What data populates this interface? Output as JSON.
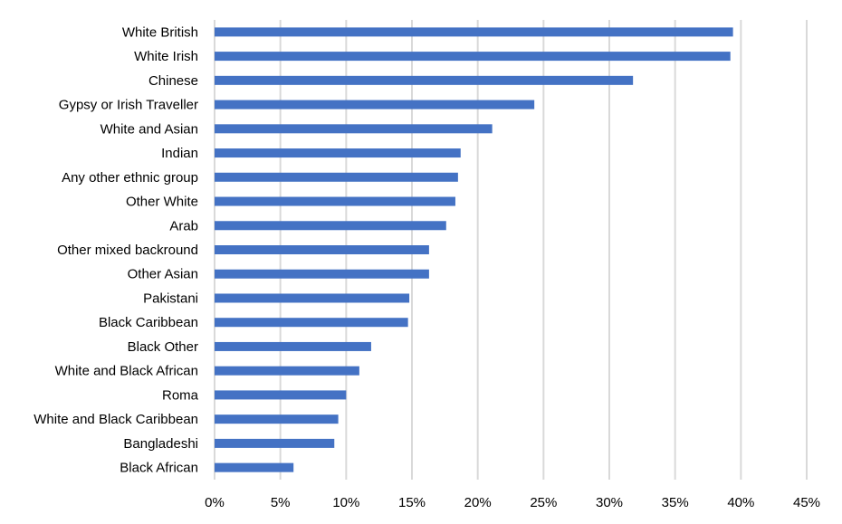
{
  "chart_data": {
    "type": "bar",
    "orientation": "horizontal",
    "title": "",
    "xlabel": "",
    "ylabel": "",
    "categories": [
      "White British",
      "White Irish",
      "Chinese",
      "Gypsy or Irish Traveller",
      "White and Asian",
      "Indian",
      "Any other ethnic group",
      "Other White",
      "Arab",
      "Other mixed backround",
      "Other Asian",
      "Pakistani",
      "Black Caribbean",
      "Black Other",
      "White and Black African",
      "Roma",
      "White and Black Caribbean",
      "Bangladeshi",
      "Black African"
    ],
    "values": [
      39.4,
      39.2,
      31.8,
      24.3,
      21.1,
      18.7,
      18.5,
      18.3,
      17.6,
      16.3,
      16.3,
      14.8,
      14.7,
      11.9,
      11.0,
      10.0,
      9.4,
      9.1,
      6.0
    ],
    "xlim": [
      0,
      45
    ],
    "ticks": [
      0,
      5,
      10,
      15,
      20,
      25,
      30,
      35,
      40,
      45
    ],
    "tick_labels": [
      "0%",
      "5%",
      "10%",
      "15%",
      "20%",
      "25%",
      "30%",
      "35%",
      "40%",
      "45%"
    ],
    "bar_color": "#4472c4",
    "grid": true,
    "legend": "none"
  }
}
